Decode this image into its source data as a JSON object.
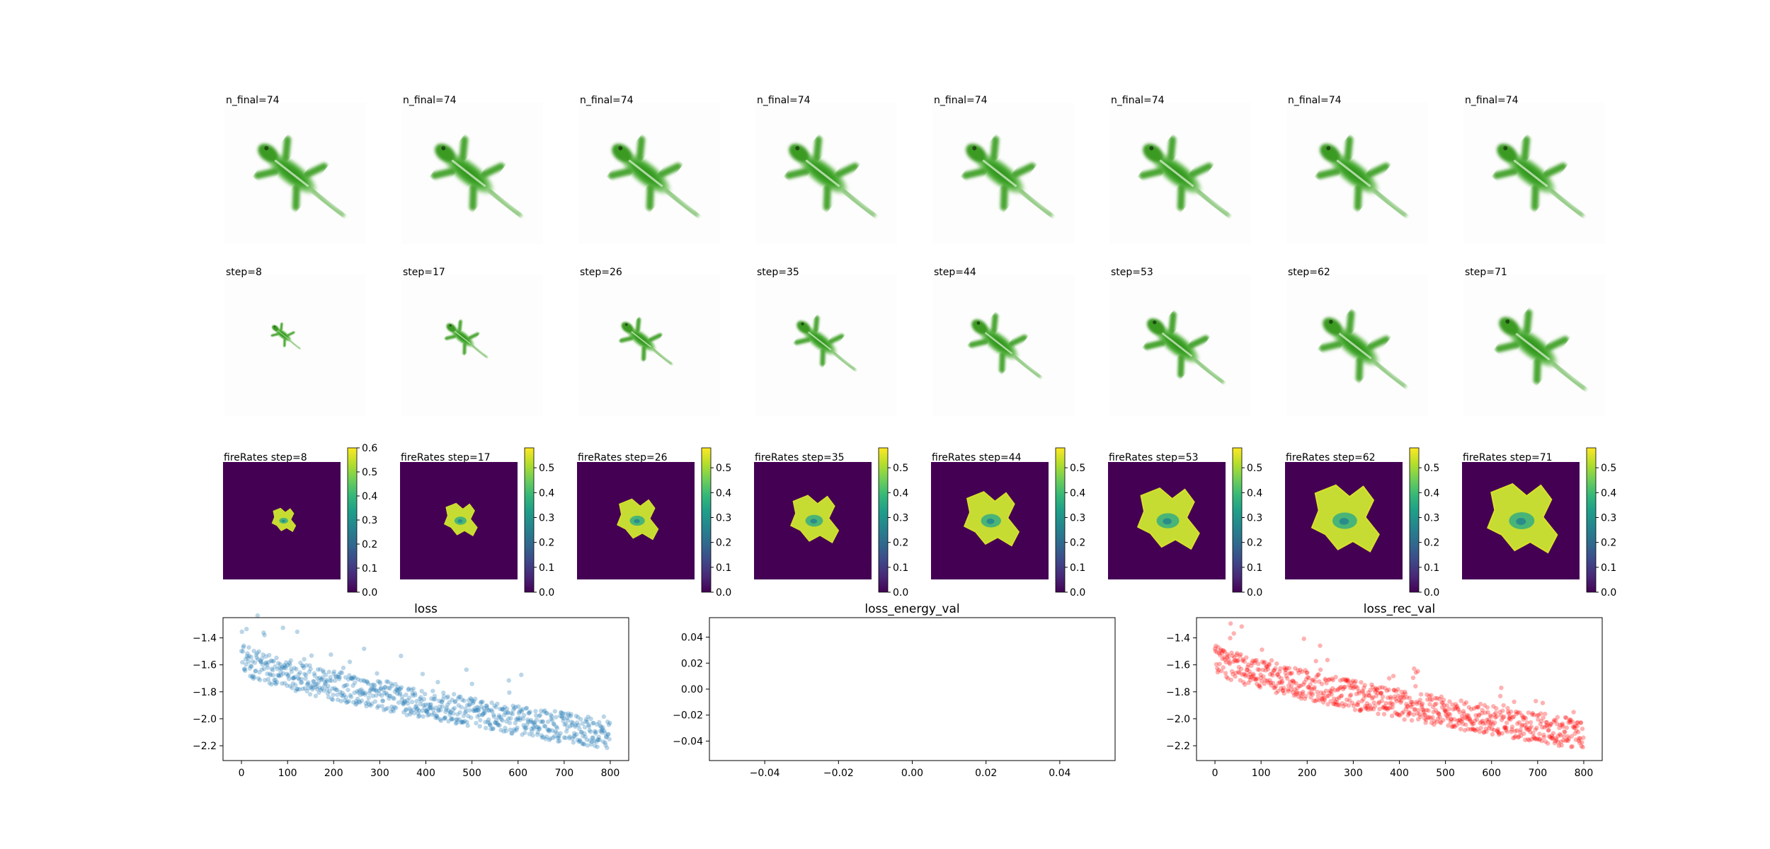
{
  "row1": {
    "titles": [
      "n_final=74",
      "n_final=74",
      "n_final=74",
      "n_final=74",
      "n_final=74",
      "n_final=74",
      "n_final=74",
      "n_final=74"
    ]
  },
  "row2": {
    "titles": [
      "step=8",
      "step=17",
      "step=26",
      "step=35",
      "step=44",
      "step=53",
      "step=62",
      "step=71"
    ],
    "growth_fraction": [
      0.16,
      0.34,
      0.48,
      0.6,
      0.75,
      0.86,
      0.95,
      1.0
    ]
  },
  "row3": {
    "titles": [
      "fireRates step=8",
      "fireRates step=17",
      "fireRates step=26",
      "fireRates step=35",
      "fireRates step=44",
      "fireRates step=53",
      "fireRates step=62",
      "fireRates step=71"
    ],
    "growth_fraction": [
      0.2,
      0.36,
      0.5,
      0.62,
      0.74,
      0.86,
      0.96,
      1.0
    ],
    "colorbar_max": [
      0.6,
      0.58,
      0.58,
      0.58,
      0.58,
      0.58,
      0.58,
      0.58
    ],
    "colorbar_ticks": [
      [
        "0.0",
        "0.1",
        "0.2",
        "0.3",
        "0.4",
        "0.5",
        "0.6"
      ],
      [
        "0.0",
        "0.1",
        "0.2",
        "0.3",
        "0.4",
        "0.5"
      ],
      [
        "0.0",
        "0.1",
        "0.2",
        "0.3",
        "0.4",
        "0.5"
      ],
      [
        "0.0",
        "0.1",
        "0.2",
        "0.3",
        "0.4",
        "0.5"
      ],
      [
        "0.0",
        "0.1",
        "0.2",
        "0.3",
        "0.4",
        "0.5"
      ],
      [
        "0.0",
        "0.1",
        "0.2",
        "0.3",
        "0.4",
        "0.5"
      ],
      [
        "0.0",
        "0.1",
        "0.2",
        "0.3",
        "0.4",
        "0.5"
      ],
      [
        "0.0",
        "0.1",
        "0.2",
        "0.3",
        "0.4",
        "0.5"
      ]
    ],
    "colormap": [
      "#440154",
      "#482878",
      "#3e4989",
      "#31688e",
      "#26828e",
      "#1f9e89",
      "#35b779",
      "#6ece58",
      "#b5de2b",
      "#fde725"
    ]
  },
  "chart_data": [
    {
      "type": "scatter",
      "title": "loss",
      "xlim": [
        -40,
        840
      ],
      "ylim": [
        -2.31,
        -1.25
      ],
      "xticks": [
        0,
        100,
        200,
        300,
        400,
        500,
        600,
        700,
        800
      ],
      "yticks": [
        -1.4,
        -1.6,
        -1.8,
        -2.0,
        -2.2
      ],
      "ytick_labels": [
        "−1.4",
        "−1.6",
        "−1.8",
        "−2.0",
        "−2.2"
      ],
      "color": "#1f77b4",
      "n_points": 800,
      "trend": {
        "start": -1.55,
        "end": -2.12
      },
      "series": [
        {
          "x_range": [
            0,
            800
          ]
        }
      ]
    },
    {
      "type": "scatter",
      "title": "loss_energy_val",
      "xlim": [
        -0.055,
        0.055
      ],
      "ylim": [
        -0.055,
        0.055
      ],
      "xticks": [
        -0.04,
        -0.02,
        0.0,
        0.02,
        0.04
      ],
      "xtick_labels": [
        "−0.04",
        "−0.02",
        "0.00",
        "0.02",
        "0.04"
      ],
      "yticks": [
        0.04,
        0.02,
        0.0,
        -0.02,
        -0.04
      ],
      "ytick_labels": [
        "0.04",
        "0.02",
        "0.00",
        "−0.02",
        "−0.04"
      ],
      "series": []
    },
    {
      "type": "scatter",
      "title": "loss_rec_val",
      "xlim": [
        -40,
        840
      ],
      "ylim": [
        -2.31,
        -1.25
      ],
      "xticks": [
        0,
        100,
        200,
        300,
        400,
        500,
        600,
        700,
        800
      ],
      "yticks": [
        -1.4,
        -1.6,
        -1.8,
        -2.0,
        -2.2
      ],
      "ytick_labels": [
        "−1.4",
        "−1.6",
        "−1.8",
        "−2.0",
        "−2.2"
      ],
      "color": "#ff0000",
      "n_points": 800,
      "trend": {
        "start": -1.55,
        "end": -2.12
      },
      "series": [
        {
          "x_range": [
            0,
            800
          ]
        }
      ]
    }
  ]
}
